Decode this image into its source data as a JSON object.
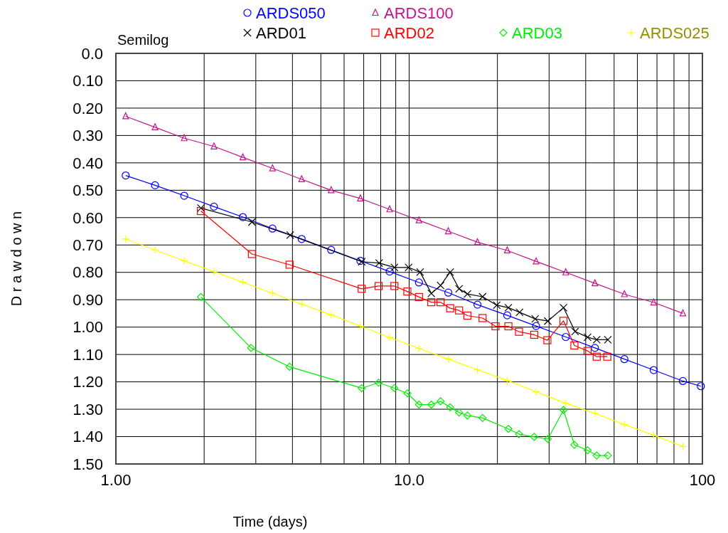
{
  "chart_data": {
    "type": "line",
    "xlabel": "Time (days)",
    "ylabel": "D r a w d o w n",
    "annotations": [
      "Semilog"
    ],
    "log": "x",
    "grid": true,
    "legend": "top",
    "xlim": [
      1,
      100
    ],
    "ylim": [
      1.5,
      0
    ],
    "xticks": [
      {
        "value": 1,
        "label": "1.00"
      },
      {
        "value": 2,
        "label": null
      },
      {
        "value": 3,
        "label": null
      },
      {
        "value": 4,
        "label": null
      },
      {
        "value": 5,
        "label": null
      },
      {
        "value": 6,
        "label": null
      },
      {
        "value": 7,
        "label": null
      },
      {
        "value": 8,
        "label": null
      },
      {
        "value": 9,
        "label": null
      },
      {
        "value": 10,
        "label": "10.0"
      },
      {
        "value": 20,
        "label": null
      },
      {
        "value": 30,
        "label": null
      },
      {
        "value": 40,
        "label": null
      },
      {
        "value": 50,
        "label": null
      },
      {
        "value": 60,
        "label": null
      },
      {
        "value": 70,
        "label": null
      },
      {
        "value": 80,
        "label": null
      },
      {
        "value": 90,
        "label": null
      },
      {
        "value": 100,
        "label": "100"
      }
    ],
    "yticks": [
      {
        "value": 0,
        "label": "0.0"
      },
      {
        "value": 0.1,
        "label": "0.10"
      },
      {
        "value": 0.2,
        "label": "0.20"
      },
      {
        "value": 0.3,
        "label": "0.30"
      },
      {
        "value": 0.4,
        "label": "0.40"
      },
      {
        "value": 0.5,
        "label": "0.50"
      },
      {
        "value": 0.6,
        "label": "0.60"
      },
      {
        "value": 0.7,
        "label": "0.70"
      },
      {
        "value": 0.8,
        "label": "0.80"
      },
      {
        "value": 0.9,
        "label": "0.90"
      },
      {
        "value": 1.0,
        "label": "1.00"
      },
      {
        "value": 1.1,
        "label": "1.10"
      },
      {
        "value": 1.2,
        "label": "1.20"
      },
      {
        "value": 1.3,
        "label": "1.30"
      },
      {
        "value": 1.4,
        "label": "1.40"
      },
      {
        "value": 1.5,
        "label": "1.50"
      }
    ],
    "series": [
      {
        "name": "ARDS050",
        "color": "#0000ff",
        "marker": "circle",
        "x": [
          1.08,
          1.36,
          1.71,
          2.16,
          2.71,
          3.42,
          4.3,
          5.42,
          6.82,
          8.58,
          10.8,
          13.6,
          17.1,
          21.6,
          27.1,
          34.2,
          43.0,
          54.2,
          68.2,
          85.8,
          98.8
        ],
        "values": [
          0.446,
          0.482,
          0.52,
          0.56,
          0.598,
          0.64,
          0.678,
          0.718,
          0.758,
          0.797,
          0.837,
          0.874,
          0.918,
          0.957,
          0.996,
          1.036,
          1.076,
          1.117,
          1.157,
          1.197,
          1.216
        ]
      },
      {
        "name": "ARDS100",
        "color": "#c0168c",
        "marker": "triangle",
        "x": [
          1.08,
          1.36,
          1.71,
          2.16,
          2.71,
          3.42,
          4.3,
          5.42,
          6.82,
          8.58,
          10.8,
          13.6,
          17.1,
          21.6,
          27.1,
          34.2,
          43.0,
          54.2,
          68.2,
          85.8
        ],
        "values": [
          0.23,
          0.27,
          0.31,
          0.34,
          0.38,
          0.42,
          0.46,
          0.5,
          0.53,
          0.57,
          0.61,
          0.65,
          0.69,
          0.72,
          0.76,
          0.8,
          0.84,
          0.88,
          0.91,
          0.95
        ]
      },
      {
        "name": "ARD01",
        "color": "#000000",
        "marker": "cross",
        "x": [
          1.95,
          2.91,
          3.93,
          6.89,
          7.9,
          8.91,
          9.96,
          10.9,
          11.9,
          12.8,
          13.8,
          14.8,
          15.8,
          17.8,
          19.9,
          21.8,
          23.8,
          26.9,
          29.7,
          33.6,
          36.8,
          40.6,
          43.6,
          47.6
        ],
        "values": [
          0.565,
          0.616,
          0.664,
          0.761,
          0.766,
          0.782,
          0.782,
          0.799,
          0.877,
          0.848,
          0.799,
          0.86,
          0.879,
          0.889,
          0.92,
          0.929,
          0.946,
          0.97,
          0.978,
          0.929,
          1.016,
          1.037,
          1.046,
          1.046
        ]
      },
      {
        "name": "ARD02",
        "color": "#ff0000",
        "marker": "square",
        "x": [
          1.95,
          2.91,
          3.91,
          6.89,
          7.87,
          8.91,
          9.86,
          10.8,
          11.9,
          12.8,
          13.8,
          14.8,
          15.8,
          17.8,
          19.7,
          21.8,
          23.7,
          26.7,
          29.6,
          33.6,
          36.6,
          40.6,
          43.6,
          47.4
        ],
        "values": [
          0.576,
          0.733,
          0.772,
          0.86,
          0.85,
          0.85,
          0.87,
          0.89,
          0.909,
          0.909,
          0.931,
          0.939,
          0.958,
          0.967,
          0.997,
          0.997,
          1.017,
          1.028,
          1.048,
          0.977,
          1.067,
          1.087,
          1.108,
          1.108
        ]
      },
      {
        "name": "ARD03",
        "color": "#00ee00",
        "marker": "diamond",
        "x": [
          1.95,
          2.89,
          3.91,
          6.89,
          7.87,
          8.91,
          9.86,
          10.8,
          11.9,
          12.8,
          13.8,
          14.8,
          15.8,
          17.8,
          21.8,
          23.7,
          26.7,
          29.7,
          33.6,
          36.6,
          40.6,
          43.6,
          47.6
        ],
        "values": [
          0.89,
          1.076,
          1.145,
          1.223,
          1.203,
          1.223,
          1.242,
          1.283,
          1.283,
          1.271,
          1.293,
          1.312,
          1.323,
          1.332,
          1.372,
          1.391,
          1.401,
          1.409,
          1.303,
          1.43,
          1.45,
          1.469,
          1.469
        ]
      },
      {
        "name": "ARDS025",
        "color": "#ffff00",
        "marker": "plus",
        "x": [
          1.08,
          1.36,
          1.71,
          2.16,
          2.71,
          3.42,
          4.3,
          5.42,
          6.82,
          8.58,
          10.8,
          13.6,
          17.1,
          21.6,
          27.1,
          34.2,
          43.0,
          54.2,
          68.2,
          85.8
        ],
        "values": [
          0.678,
          0.718,
          0.758,
          0.797,
          0.836,
          0.876,
          0.916,
          0.955,
          0.996,
          1.038,
          1.078,
          1.117,
          1.156,
          1.195,
          1.236,
          1.278,
          1.315,
          1.356,
          1.395,
          1.436
        ]
      }
    ]
  }
}
